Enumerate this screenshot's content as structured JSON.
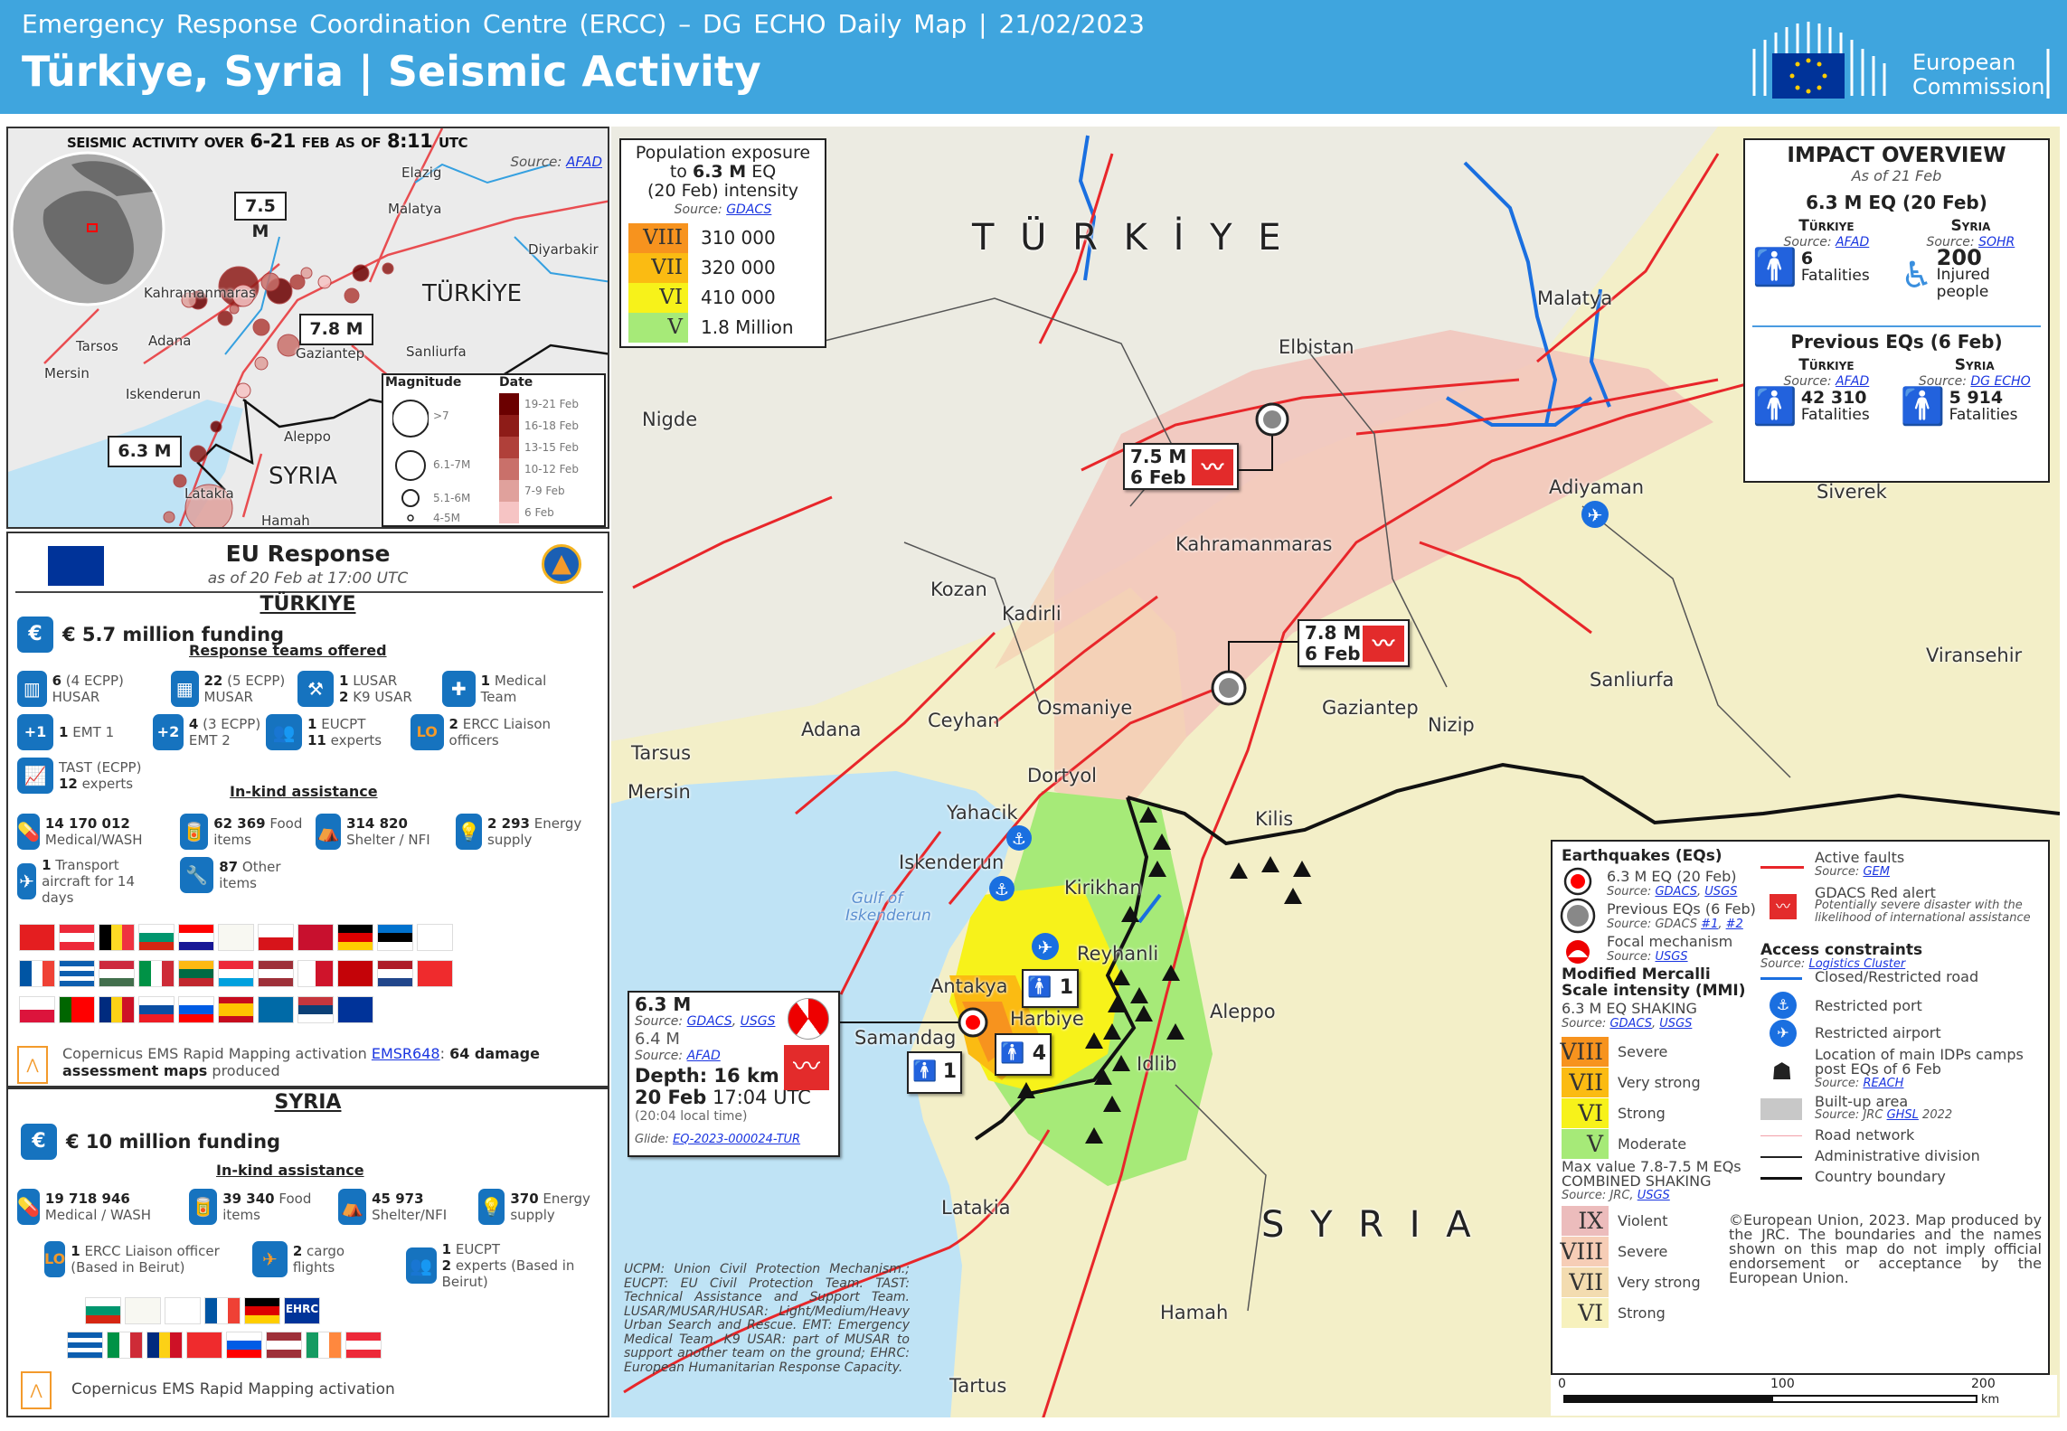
{
  "header": {
    "subtitle": "Emergency Response Coordination Centre (ERCC) – DG ECHO Daily Map | 21/02/2023",
    "title": "Türkiye, Syria | Seismic Activity",
    "logo_text": [
      "European",
      "Commission"
    ]
  },
  "colors": {
    "header": "#3fa5de",
    "mmi_VIII": "#f7931e",
    "mmi_VII": "#fbbb12",
    "mmi_VI": "#f7f21a",
    "mmi_V": "#a6ea78",
    "comb_IX": "#ecbcbc",
    "comb_VIII": "#f6cdb6",
    "comb_VII": "#f3dcb0",
    "comb_VI": "#f7f1bd",
    "fault": "#e8262a",
    "icon_blue": "#1673bf"
  },
  "inset": {
    "title": "Seismic activity over 6-21 Feb as of 8:11 UTC",
    "source_label": "Source:",
    "source_link": "AFAD",
    "country_turkiye": "TÜRKİYE",
    "country_syria": "SYRIA",
    "cities": [
      "Elazig",
      "Malatya",
      "Diyarbakir",
      "Kahramanmaras",
      "Tarsos",
      "Adana",
      "Mersin",
      "Gaziantep",
      "Sanliurfa",
      "Iskenderun",
      "Aleppo",
      "Latakia",
      "Hamah"
    ],
    "callouts": [
      "7.5 M",
      "7.8 M",
      "6.3 M"
    ],
    "legend": {
      "magnitude_title": "Magnitude",
      "date_title": "Date",
      "magnitudes": [
        ">7",
        "6.1-7M",
        "5.1-6M",
        "4-5M"
      ],
      "dates": [
        "19-21 Feb",
        "16-18 Feb",
        "13-15 Feb",
        "10-12 Feb",
        "7-9 Feb",
        "6 Feb"
      ],
      "date_colors": [
        "#6b0000",
        "#8e1c18",
        "#b0403a",
        "#c9706a",
        "#e0a19c",
        "#f6c4c4"
      ]
    }
  },
  "eu": {
    "title": "EU Response",
    "asof": "as of 20 Feb at 17:00 UTC",
    "turkiye": {
      "heading": "TÜRKIYE",
      "funding": "€ 5.7  million  funding",
      "teams_heading": "Response teams offered",
      "teams": [
        {
          "icon": "husar-icon",
          "bold": "6",
          "text": "(4 ECPP) HUSAR"
        },
        {
          "icon": "musar-icon",
          "bold": "22",
          "text": "(5 ECPP) MUSAR"
        },
        {
          "icon": "lusar-icon",
          "bold": "1",
          "text": "LUSAR",
          "bold2": "2",
          "text2": "K9 USAR"
        },
        {
          "icon": "medical-team-icon",
          "bold": "1",
          "text": "Medical Team"
        },
        {
          "icon": "emt1-icon",
          "bold": "1",
          "text": "EMT 1"
        },
        {
          "icon": "emt2-icon",
          "bold": "4",
          "text": "(3 ECPP) EMT 2"
        },
        {
          "icon": "eucpt-icon",
          "bold": "1",
          "text": "EUCPT",
          "bold2": "11",
          "text2": "experts"
        },
        {
          "icon": "liaison-icon",
          "bold": "2",
          "text": "ERCC Liaison officers"
        },
        {
          "icon": "tast-icon",
          "bold": "",
          "text": "TAST (ECPP)",
          "bold2": "12",
          "text2": "experts"
        }
      ],
      "inkind_heading": "In-kind assistance",
      "inkind": [
        {
          "icon": "medical-icon",
          "bold": "14 170 012",
          "text": "Medical/WASH"
        },
        {
          "icon": "food-icon",
          "bold": "62 369",
          "text": "Food items"
        },
        {
          "icon": "shelter-icon",
          "bold": "314 820",
          "text": "Shelter / NFI"
        },
        {
          "icon": "energy-icon",
          "bold": "2 293",
          "text": "Energy supply"
        },
        {
          "icon": "aircraft-icon",
          "bold": "1",
          "text": "Transport aircraft for 14 days"
        },
        {
          "icon": "tools-icon",
          "bold": "87",
          "text": "Other items"
        }
      ],
      "flags": [
        {
          "n": "Albania",
          "c": [
            "#e41e20"
          ]
        },
        {
          "n": "Austria",
          "c": [
            "#ed2939",
            "#fff",
            "#ed2939"
          ],
          "h": 1
        },
        {
          "n": "Belgium",
          "c": [
            "#000",
            "#fdda24",
            "#ef3340"
          ]
        },
        {
          "n": "Bulgaria",
          "c": [
            "#fff",
            "#00966e",
            "#d62612"
          ],
          "h": 1
        },
        {
          "n": "Croatia",
          "c": [
            "#ff0000",
            "#fff",
            "#171796"
          ],
          "h": 1
        },
        {
          "n": "Cyprus",
          "c": [
            "#f8f8f2"
          ]
        },
        {
          "n": "Czechia",
          "c": [
            "#fff",
            "#d7141a"
          ],
          "h": 1
        },
        {
          "n": "Denmark",
          "c": [
            "#c8102e"
          ]
        },
        {
          "n": "Germany",
          "c": [
            "#000",
            "#dd0000",
            "#ffce00"
          ],
          "h": 1
        },
        {
          "n": "Estonia",
          "c": [
            "#0072ce",
            "#000",
            "#fff"
          ],
          "h": 1
        },
        {
          "n": "Finland",
          "c": [
            "#fff"
          ]
        },
        {
          "n": "France",
          "c": [
            "#0055a4",
            "#fff",
            "#ef4135"
          ]
        },
        {
          "n": "Greece",
          "c": [
            "#0d5eaf",
            "#fff",
            "#0d5eaf",
            "#fff",
            "#0d5eaf"
          ],
          "h": 1
        },
        {
          "n": "Hungary",
          "c": [
            "#cd2a3e",
            "#fff",
            "#436f4d"
          ],
          "h": 1
        },
        {
          "n": "Italy",
          "c": [
            "#009246",
            "#fff",
            "#ce2b37"
          ]
        },
        {
          "n": "Lithuania",
          "c": [
            "#fdb913",
            "#006a44",
            "#c1272d"
          ],
          "h": 1
        },
        {
          "n": "Luxembourg",
          "c": [
            "#ed2939",
            "#fff",
            "#00a1de"
          ],
          "h": 1
        },
        {
          "n": "Latvia",
          "c": [
            "#9e3039",
            "#fff",
            "#9e3039"
          ],
          "h": 1
        },
        {
          "n": "Malta",
          "c": [
            "#fff",
            "#cf142b"
          ]
        },
        {
          "n": "Montenegro",
          "c": [
            "#c40308"
          ]
        },
        {
          "n": "Netherlands",
          "c": [
            "#ae1c28",
            "#fff",
            "#21468b"
          ],
          "h": 1
        },
        {
          "n": "Norway",
          "c": [
            "#ef2b2d"
          ]
        },
        {
          "n": "Poland",
          "c": [
            "#fff",
            "#dc143c"
          ],
          "h": 1
        },
        {
          "n": "Portugal",
          "c": [
            "#006600",
            "#ff0000",
            "#ff0000"
          ]
        },
        {
          "n": "Romania",
          "c": [
            "#002b7f",
            "#fcd116",
            "#ce1126"
          ]
        },
        {
          "n": "Slovakia",
          "c": [
            "#fff",
            "#0b4ea2",
            "#ee1c25"
          ],
          "h": 1
        },
        {
          "n": "Slovenia",
          "c": [
            "#fff",
            "#005ce5",
            "#ff0000"
          ],
          "h": 1
        },
        {
          "n": "Spain",
          "c": [
            "#c60b1e",
            "#ffc400",
            "#ffc400",
            "#c60b1e"
          ],
          "h": 1
        },
        {
          "n": "Sweden",
          "c": [
            "#006aa7"
          ]
        },
        {
          "n": "Serbia",
          "c": [
            "#c6363c",
            "#0c4076",
            "#fff"
          ],
          "h": 1
        },
        {
          "n": "EU",
          "c": [
            "#003399"
          ]
        }
      ],
      "copernicus": {
        "text": "Copernicus EMS Rapid Mapping activation ",
        "link": "EMSR648",
        "colon": ": ",
        "bold": "64 damage assessment maps",
        "rest": " produced"
      }
    },
    "syria": {
      "heading": "SYRIA",
      "funding": "€ 10 million  funding",
      "inkind_heading": "In-kind assistance",
      "inkind": [
        {
          "icon": "medical-icon",
          "bold": "19 718 946",
          "text": "Medical / WASH"
        },
        {
          "icon": "food-icon",
          "bold": "39 340",
          "text": "Food items"
        },
        {
          "icon": "shelter-icon",
          "bold": "45 973",
          "text": "Shelter/NFI"
        },
        {
          "icon": "energy-icon",
          "bold": "370",
          "text": "Energy supply"
        },
        {
          "icon": "liaison-icon",
          "bold": "1",
          "text": "ERCC Liaison officer (Based in Beirut)"
        },
        {
          "icon": "cargo-icon",
          "bold": "2",
          "text": "cargo flights"
        },
        {
          "icon": "eucpt-icon",
          "bold": "1",
          "text": "EUCPT",
          "bold2": "2",
          "text2": "experts (Based in Beirut)"
        }
      ],
      "flags": [
        {
          "n": "Bulgaria",
          "c": [
            "#fff",
            "#00966e",
            "#d62612"
          ],
          "h": 1
        },
        {
          "n": "Cyprus",
          "c": [
            "#f8f8f2"
          ]
        },
        {
          "n": "Finland",
          "c": [
            "#fff"
          ]
        },
        {
          "n": "France",
          "c": [
            "#0055a4",
            "#fff",
            "#ef4135"
          ]
        },
        {
          "n": "Germany",
          "c": [
            "#000",
            "#dd0000",
            "#ffce00"
          ],
          "h": 1
        },
        {
          "n": "EHRC",
          "c": [
            "#003399"
          ],
          "t": "EHRC"
        },
        {
          "n": "Greece",
          "c": [
            "#0d5eaf",
            "#fff",
            "#0d5eaf",
            "#fff",
            "#0d5eaf"
          ],
          "h": 1
        },
        {
          "n": "Italy",
          "c": [
            "#009246",
            "#fff",
            "#ce2b37"
          ]
        },
        {
          "n": "Romania",
          "c": [
            "#002b7f",
            "#fcd116",
            "#ce1126"
          ]
        },
        {
          "n": "Norway",
          "c": [
            "#ef2b2d"
          ]
        },
        {
          "n": "Slovenia",
          "c": [
            "#fff",
            "#005ce5",
            "#ff0000"
          ],
          "h": 1
        },
        {
          "n": "Latvia",
          "c": [
            "#9e3039",
            "#fff",
            "#9e3039"
          ],
          "h": 1
        },
        {
          "n": "Ireland",
          "c": [
            "#169b62",
            "#fff",
            "#ff883e"
          ]
        },
        {
          "n": "Austria",
          "c": [
            "#ed2939",
            "#fff",
            "#ed2939"
          ],
          "h": 1
        }
      ],
      "copernicus": "Copernicus EMS Rapid Mapping activation"
    }
  },
  "population": {
    "title1": "Population exposure",
    "title2a": "to ",
    "title2b": "6.3 M",
    "title2c": " EQ",
    "title3": "(20 Feb) intensity",
    "source_label": "Source:",
    "source_link": "GDACS",
    "rows": [
      {
        "mmi": "VIII",
        "value": "310 000"
      },
      {
        "mmi": "VII",
        "value": "320 000"
      },
      {
        "mmi": "VI",
        "value": "410 000"
      },
      {
        "mmi": "V",
        "value": "1.8 Million"
      }
    ]
  },
  "impact": {
    "title": "IMPACT OVERVIEW",
    "asof": "As of 21 Feb",
    "recent_heading": "6.3 M EQ (20 Feb)",
    "previous_heading": "Previous EQs (6 Feb)",
    "recent": [
      {
        "country": "Türkiye",
        "source": "AFAD",
        "value": "6",
        "label": "Fatalities"
      },
      {
        "country": "Syria",
        "source": "SOHR",
        "value": "200",
        "label": "Injured people"
      }
    ],
    "previous": [
      {
        "country": "Türkiye",
        "source": "AFAD",
        "value": "42 310",
        "label": "Fatalities"
      },
      {
        "country": "Syria",
        "source": "DG ECHO",
        "value": "5 914",
        "label": "Fatalities"
      }
    ],
    "source_label": "Source:"
  },
  "map": {
    "country_turkiye": "T Ü R K İ Y E",
    "country_syria": "S Y R I A",
    "gulf": "Gulf of Iskenderun",
    "cities": [
      "Malatya",
      "Elbistan",
      "Nigde",
      "Adiyaman",
      "Siverek",
      "Kahramanmaras",
      "Kozan",
      "Kadirli",
      "Viransehir",
      "Sanliurfa",
      "Osmaniye",
      "Gaziantep",
      "Adana",
      "Ceyhan",
      "Nizip",
      "Tarsus",
      "Mersin",
      "Dortyol",
      "Yahacik",
      "Kilis",
      "Iskenderun",
      "Kirikhan",
      "Reyhanli",
      "Antakya",
      "Harbiye",
      "Aleppo",
      "Samandag",
      "Idlib",
      "Latakia",
      "Hamah",
      "Tartus"
    ],
    "eq75": {
      "mag": "7.5 M",
      "date": "6 Feb"
    },
    "eq78": {
      "mag": "7.8 M",
      "date": "6 Feb"
    },
    "casualty_markers": [
      "1",
      "4",
      "1"
    ],
    "eq63": {
      "mag": "6.3 M",
      "source_label": "Source:",
      "src1": "GDACS",
      "src2": "USGS",
      "mag2": "6.4 M",
      "src3": "AFAD",
      "depth": "Depth: 16 km",
      "date": "20 Feb",
      "time": "17:04 UTC",
      "local": "(20:04 local time)",
      "glide_label": "Glide:",
      "glide": "EQ-2023-000024-TUR"
    },
    "footnote": "UCPM: Union Civil Protection Mechanism.; EUCPT: EU Civil Protection Team. TAST: Technical Assistance and Support Team. LUSAR/MUSAR/HUSAR: Light/Medium/Heavy Urban Search and Rescue. EMT: Emergency Medical Team. K9 USAR: part of MUSAR to support another team on the ground; EHRC: European Humanitarian Response Capacity."
  },
  "legend": {
    "eq_title": "Earthquakes (EQs)",
    "eq63": "6.3 M EQ (20 Feb)",
    "eq63_src": [
      "GDACS",
      "USGS"
    ],
    "prev": "Previous EQs (6 Feb)",
    "prev_src_text": "GDACS",
    "prev_src": [
      "#1",
      "#2"
    ],
    "focal": "Focal mechanism",
    "focal_src": "USGS",
    "source_label": "Source:",
    "mmi_title": "Modified Mercalli Scale intensity (MMI)",
    "shaking_63": "6.3 M EQ SHAKING",
    "shaking_63_src": [
      "GDACS",
      "USGS"
    ],
    "mmi63": [
      {
        "r": "VIII",
        "t": "Severe"
      },
      {
        "r": "VII",
        "t": "Very strong"
      },
      {
        "r": "VI",
        "t": "Strong"
      },
      {
        "r": "V",
        "t": "Moderate"
      }
    ],
    "combined_title1": "Max value 7.8-7.5 M EQs",
    "combined_title2": "COMBINED SHAKING",
    "combined_src_text": "JRC,",
    "combined_src": "USGS",
    "combined": [
      {
        "r": "IX",
        "t": "Violent"
      },
      {
        "r": "VIII",
        "t": "Severe"
      },
      {
        "r": "VII",
        "t": "Very strong"
      },
      {
        "r": "VI",
        "t": "Strong"
      }
    ],
    "faults": "Active faults",
    "faults_src": "GEM",
    "gdacs": "GDACS Red alert",
    "gdacs_desc": "Potentially severe disaster with the likelihood of international assistance",
    "access_title": "Access constraints",
    "access_src": "Logistics Cluster",
    "road_closed": "Closed/Restricted road",
    "port": "Restricted port",
    "airport": "Restricted airport",
    "idp": "Location of main IDPs camps post EQs of 6 Feb",
    "idp_src": "REACH",
    "builtup": "Built-up area",
    "builtup_src_text": "JRC",
    "builtup_src": "GHSL",
    "builtup_year": "2022",
    "roads": "Road network",
    "admin": "Administrative division",
    "boundary": "Country boundary",
    "copyright": "©European Union, 2023. Map produced by the JRC. The boundaries and the names shown on this map do not imply official endorsement or acceptance by the European Union."
  },
  "scale": {
    "ticks": [
      "0",
      "100",
      "200"
    ],
    "unit": "km"
  }
}
